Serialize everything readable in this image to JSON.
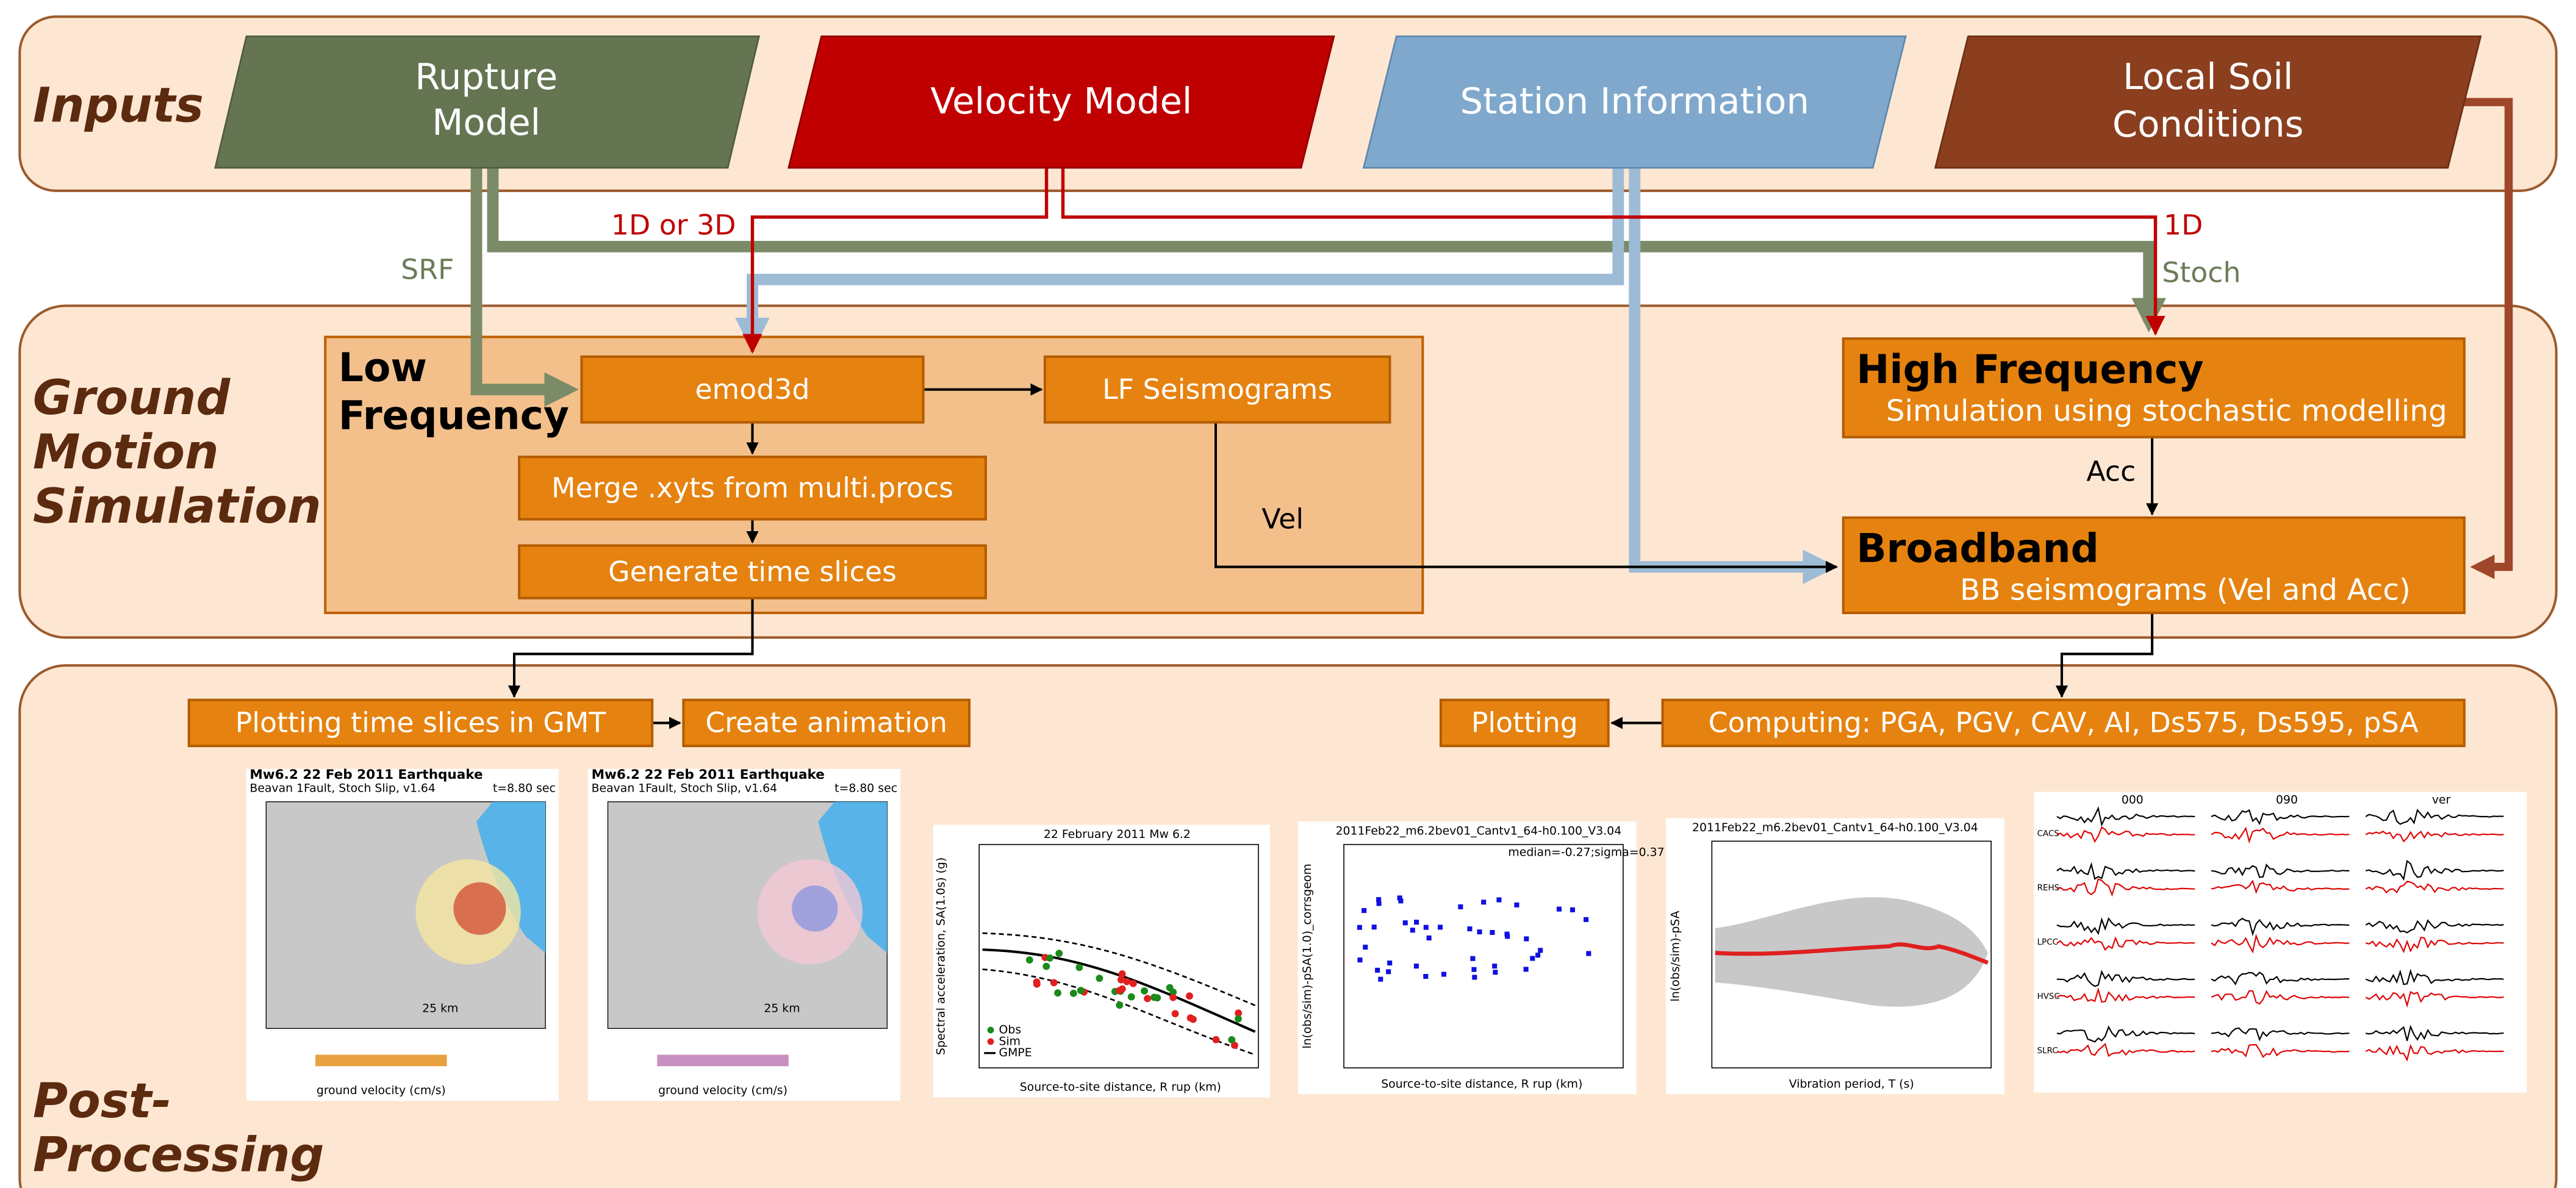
{
  "sections": {
    "inputs": "Inputs",
    "ground_motion": [
      "Ground",
      "Motion",
      "Simulation"
    ],
    "post_processing": [
      "Post-",
      "Processing"
    ]
  },
  "inputs": [
    [
      "Rupture",
      "Model"
    ],
    [
      "Velocity Model"
    ],
    [
      "Station Information"
    ],
    [
      "Local Soil",
      "Conditions"
    ]
  ],
  "edge_labels": {
    "srf": "SRF",
    "one_d_or_three_d": "1D or 3D",
    "one_d": "1D",
    "stoch": "Stoch",
    "acc": "Acc",
    "vel": "Vel"
  },
  "low_frequency": {
    "title": [
      "Low",
      "Frequency"
    ],
    "emod3d": "emod3d",
    "lf_seismograms": "LF Seismograms",
    "merge": "Merge .xyts from multi.procs",
    "time_slices": "Generate time slices"
  },
  "high_frequency": {
    "title": "High Frequency",
    "subtitle": "Simulation using stochastic modelling"
  },
  "broadband": {
    "title": "Broadband",
    "subtitle": "BB seismograms (Vel and Acc)"
  },
  "post_steps": {
    "plotting_slices": "Plotting time slices in GMT",
    "animation": "Create animation",
    "plotting": "Plotting",
    "computing": "Computing: PGA, PGV, CAV, AI, Ds575, Ds595, pSA"
  },
  "plots": {
    "map_title": "Mw6.2 22 Feb 2011 Earthquake",
    "map_subtitle": "Beavan 1Fault, Stoch Slip, v1.64",
    "map_time": "t=8.80 sec",
    "map_scale": "25 km",
    "map_colorbar": "ground velocity (cm/s)",
    "gmpe_title": "22 February 2011 Mw 6.2",
    "gmpe_ylabel": "Spectral acceleration, SA(1.0s) (g)",
    "gmpe_xlabel": "Source-to-site distance, R rup (km)",
    "gmpe_legend": [
      "Obs",
      "Sim",
      "GMPE"
    ],
    "resid_title": "2011Feb22_m6.2bev01_Cantv1_64-h0.100_V3.04",
    "resid_stats": "median=-0.27;sigma=0.37",
    "resid_ylabel": "ln(obs/sim)-pSA(1.0)_corrsgeom",
    "resid_xlabel": "Source-to-site distance, R rup (km)",
    "bias_ylabel": "ln(obs/sim)-pSA",
    "bias_xlabel": "Vibration period, T (s)",
    "wave_headers": [
      "000",
      "090",
      "ver"
    ],
    "wave_stations": [
      "CACS",
      "REHS",
      "LPCC",
      "HVSC",
      "SLRC"
    ]
  }
}
